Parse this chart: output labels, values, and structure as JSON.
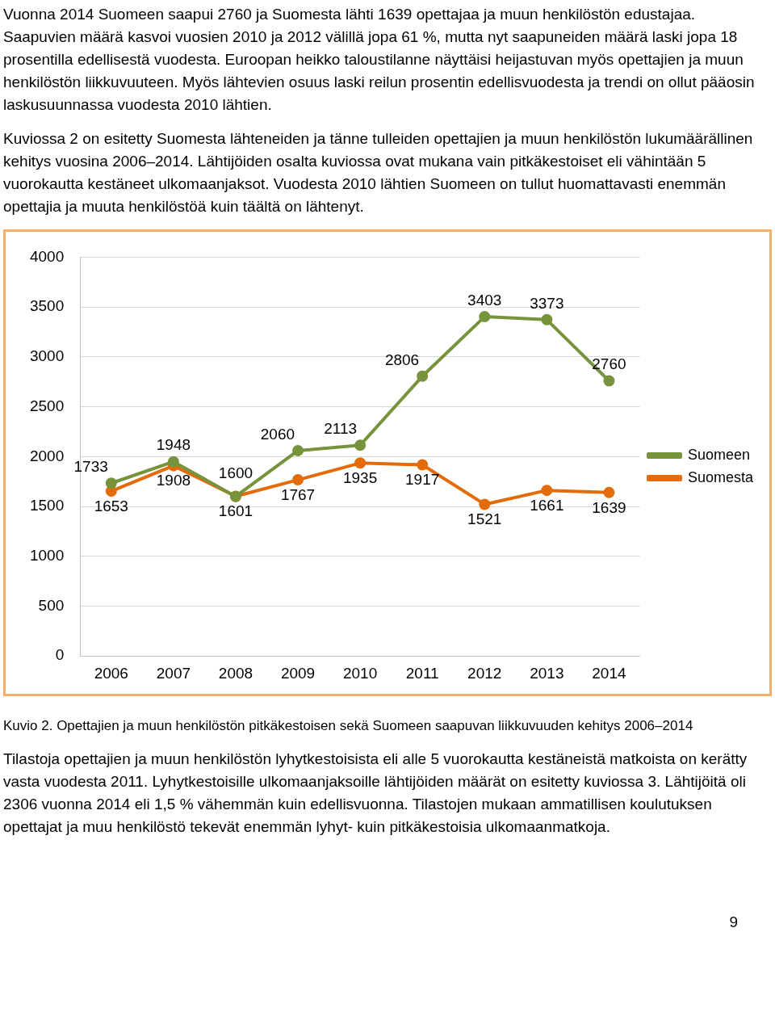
{
  "chart_data": {
    "type": "line",
    "annotations": [
      "Vuonna 2014 Suomeen saapui 2760 ja Suomesta lähti 1639 opettajaa ja muun henkilöstön edustajaa. Saapuvien määrä kasvoi vuosien 2010 ja 2012 välillä jopa 61 %, mutta nyt saapuneiden määrä laski jopa 18 prosentilla edellisestä vuodesta. Euroopan heikko taloustilanne näyttäisi heijastuvan myös opettajien ja muun henkilöstön liikkuvuuteen. Myös lähtevien osuus laski reilun prosentin edellisvuodesta ja trendi on ollut pääosin laskusuunnassa vuodesta 2010 lähtien.",
      "Kuviossa 2 on esitetty Suomesta lähteneiden ja tänne tulleiden opettajien ja muun henkilöstön lukumäärällinen kehitys vuosina 2006–2014. Lähtijöiden osalta kuviossa ovat mukana vain pitkäkestoiset eli vähintään 5 vuorokautta kestäneet ulkomaanjaksot. Vuodesta 2010 lähtien Suomeen on tullut huomattavasti enemmän opettajia ja muuta henkilöstöä kuin täältä on lähtenyt.",
      "Kuvio 2. Opettajien ja muun henkilöstön pitkäkestoisen sekä Suomeen saapuvan liikkuvuuden kehitys 2006–2014",
      "Tilastoja opettajien ja muun henkilöstön lyhytkestoisista eli alle 5 vuorokautta kestäneistä matkoista on kerätty vasta vuodesta 2011. Lyhytkestoisille ulkomaanjaksoille lähtijöiden määrät on esitetty kuviossa 3. Lähtijöitä oli 2306 vuonna 2014 eli 1,5 % vähemmän kuin edellisvuonna. Tilastojen mukaan ammatillisen koulutuksen opettajat ja muu henkilöstö tekevät enemmän lyhyt- kuin pitkäkestoisia ulkomaanmatkoja.",
      "9"
    ],
    "categories": [
      "2006",
      "2007",
      "2008",
      "2009",
      "2010",
      "2011",
      "2012",
      "2013",
      "2014"
    ],
    "series": [
      {
        "name": "Suomeen",
        "color": "#77933c",
        "values": [
          1733,
          1948,
          1600,
          2060,
          2113,
          2806,
          3403,
          3373,
          2760
        ]
      },
      {
        "name": "Suomesta",
        "color": "#e36c09",
        "values": [
          1653,
          1908,
          1601,
          1767,
          1935,
          1917,
          1521,
          1661,
          1639
        ]
      }
    ],
    "ylim": [
      0,
      4000
    ],
    "yticks": [
      0,
      500,
      1000,
      1500,
      2000,
      2500,
      3000,
      3500,
      4000
    ],
    "grid": "y",
    "legend": "right",
    "marker": "circle",
    "line_style": "solid",
    "data_labels": true
  }
}
